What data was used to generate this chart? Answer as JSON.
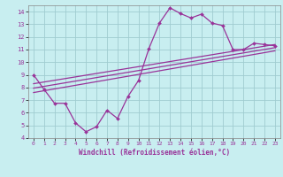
{
  "background_color": "#c8eef0",
  "grid_color": "#a0ccd0",
  "line_color": "#993399",
  "xlabel": "Windchill (Refroidissement éolien,°C)",
  "xlim": [
    -0.5,
    23.5
  ],
  "ylim": [
    4,
    14.5
  ],
  "xticks": [
    0,
    1,
    2,
    3,
    4,
    5,
    6,
    7,
    8,
    9,
    10,
    11,
    12,
    13,
    14,
    15,
    16,
    17,
    18,
    19,
    20,
    21,
    22,
    23
  ],
  "yticks": [
    4,
    5,
    6,
    7,
    8,
    9,
    10,
    11,
    12,
    13,
    14
  ],
  "series1_x": [
    0,
    1,
    2,
    3,
    4,
    5,
    6,
    7,
    8,
    9,
    10,
    11,
    12,
    13,
    14,
    15,
    16,
    17,
    18,
    19,
    20,
    21,
    22,
    23
  ],
  "series1_y": [
    9.0,
    7.85,
    6.75,
    6.75,
    5.2,
    4.5,
    4.9,
    6.2,
    5.55,
    7.3,
    8.55,
    11.1,
    13.1,
    14.3,
    13.85,
    13.5,
    13.8,
    13.1,
    12.9,
    11.0,
    11.0,
    11.5,
    11.4,
    11.3
  ],
  "series2_x": [
    0,
    23
  ],
  "series2_y": [
    8.3,
    11.4
  ],
  "series3_x": [
    0,
    23
  ],
  "series3_y": [
    7.95,
    11.15
  ],
  "series4_x": [
    0,
    23
  ],
  "series4_y": [
    7.6,
    10.9
  ]
}
